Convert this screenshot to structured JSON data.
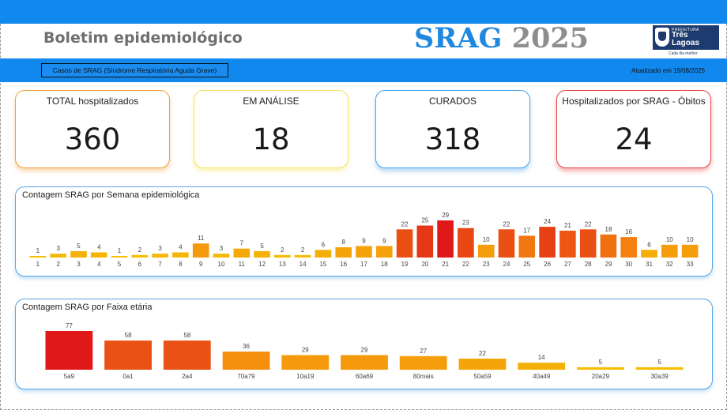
{
  "header": {
    "title": "Boletim epidemiológico",
    "srag_label": "SRAG",
    "year_label": "2025",
    "logo": {
      "small_text": "PREFEITURA",
      "name": "Três Lagoas",
      "slogan": "Cada dia melhor"
    }
  },
  "subheader": {
    "subtitle": "Casos de SRAG (Síndrome Respiratória Aguda Grave)",
    "updated": "Atualizado em 19/08/2025"
  },
  "kpis": [
    {
      "label": "TOTAL hospitalizados",
      "value": "360",
      "color": "#f0a03a"
    },
    {
      "label": "EM ANÁLISE",
      "value": "18",
      "color": "#f5e15a"
    },
    {
      "label": "CURADOS",
      "value": "318",
      "color": "#4aa3ea"
    },
    {
      "label": "Hospitalizados por SRAG - Óbitos",
      "value": "24",
      "color": "#e54545"
    }
  ],
  "chart_data": [
    {
      "type": "bar",
      "title": "Contagem SRAG por Semana epidemiológica",
      "categories": [
        "1",
        "2",
        "3",
        "4",
        "5",
        "6",
        "7",
        "8",
        "9",
        "10",
        "11",
        "12",
        "13",
        "14",
        "15",
        "16",
        "17",
        "18",
        "19",
        "20",
        "21",
        "22",
        "23",
        "24",
        "25",
        "26",
        "27",
        "28",
        "29",
        "30",
        "31",
        "32",
        "33"
      ],
      "values": [
        1,
        3,
        5,
        4,
        1,
        2,
        3,
        4,
        11,
        3,
        7,
        5,
        2,
        2,
        6,
        8,
        9,
        9,
        22,
        25,
        29,
        23,
        10,
        22,
        17,
        24,
        21,
        22,
        18,
        16,
        6,
        10,
        10
      ],
      "ylim": [
        0,
        29
      ],
      "color_scale": [
        "#f5c400",
        "#f58c10",
        "#e01818"
      ]
    },
    {
      "type": "bar",
      "title": "Contagem SRAG por Faixa etária",
      "categories": [
        "5a9",
        "0a1",
        "2a4",
        "70a79",
        "10a19",
        "60a69",
        "80mais",
        "50a59",
        "40a49",
        "20a29",
        "30a39"
      ],
      "values": [
        77,
        58,
        58,
        36,
        29,
        29,
        27,
        22,
        14,
        5,
        5
      ],
      "ylim": [
        0,
        77
      ],
      "color_scale": [
        "#f5c400",
        "#f58c10",
        "#e01818"
      ]
    }
  ]
}
